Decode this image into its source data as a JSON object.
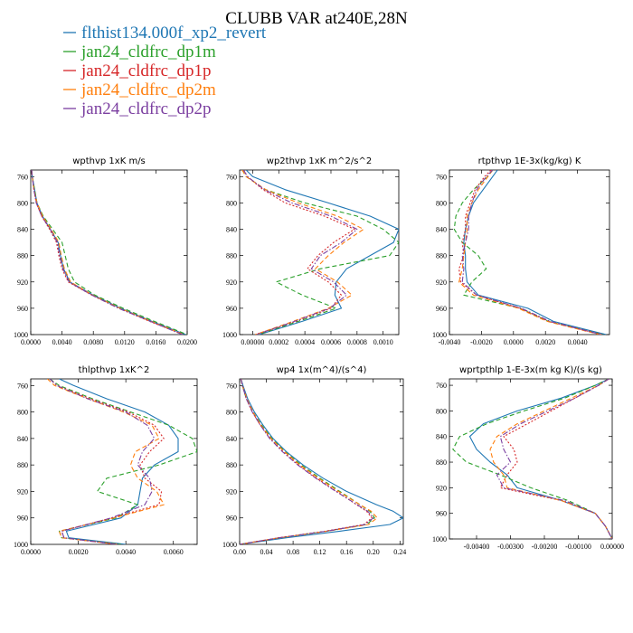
{
  "title": "CLUBB VAR at240E,28N",
  "series_styles": [
    {
      "name": "flthist134.000f_xp2_revert",
      "color": "#1f77b4",
      "dash": "solid"
    },
    {
      "name": "jan24_cldfrc_dp1m",
      "color": "#2ca02c",
      "dash": "dashed"
    },
    {
      "name": "jan24_cldfrc_dp1p",
      "color": "#d62728",
      "dash": "dotted"
    },
    {
      "name": "jan24_cldfrc_dp2m",
      "color": "#ff7f0e",
      "dash": "dashed"
    },
    {
      "name": "jan24_cldfrc_dp2p",
      "color": "#7b3fa0",
      "dash": "dashdot"
    }
  ],
  "chart_data": [
    {
      "type": "line",
      "title": "wpthvp  1xK m/s",
      "xlim": [
        0,
        0.02
      ],
      "ylim": [
        1000,
        750
      ],
      "xticks": [
        0,
        0.004,
        0.008,
        0.012,
        0.016,
        0.02
      ],
      "xtick_labels": [
        "0.0000",
        "0.0040",
        "0.0080",
        "0.0120",
        "0.0160",
        "0.0200"
      ],
      "yticks": [
        760,
        800,
        840,
        880,
        920,
        960,
        1000
      ],
      "y": [
        750,
        760,
        780,
        800,
        820,
        840,
        860,
        880,
        900,
        920,
        940,
        960,
        980,
        1000
      ],
      "series": [
        {
          "name": "flthist134.000f_xp2_revert",
          "values": [
            0.0001,
            0.0002,
            0.0005,
            0.0008,
            0.0015,
            0.0025,
            0.0035,
            0.0038,
            0.0042,
            0.005,
            0.008,
            0.0115,
            0.0155,
            0.0198
          ]
        },
        {
          "name": "jan24_cldfrc_dp1m",
          "values": [
            0.0001,
            0.0002,
            0.0005,
            0.0008,
            0.0016,
            0.0028,
            0.004,
            0.0044,
            0.0048,
            0.0056,
            0.0082,
            0.0118,
            0.0158,
            0.02
          ]
        },
        {
          "name": "jan24_cldfrc_dp1p",
          "values": [
            0.0001,
            0.0002,
            0.0004,
            0.0007,
            0.0014,
            0.0024,
            0.0033,
            0.0036,
            0.004,
            0.0048,
            0.0078,
            0.0113,
            0.0152,
            0.0195
          ]
        },
        {
          "name": "jan24_cldfrc_dp2m",
          "values": [
            0.0001,
            0.0002,
            0.0004,
            0.0008,
            0.0015,
            0.0026,
            0.0036,
            0.0039,
            0.0043,
            0.0051,
            0.0079,
            0.0114,
            0.0154,
            0.0196
          ]
        },
        {
          "name": "jan24_cldfrc_dp2p",
          "values": [
            0.0001,
            0.0002,
            0.0004,
            0.0007,
            0.0014,
            0.0025,
            0.0034,
            0.0037,
            0.0041,
            0.0049,
            0.0078,
            0.0112,
            0.0153,
            0.0194
          ]
        }
      ]
    },
    {
      "type": "line",
      "title": "wp2thvp  1xK m^2/s^2",
      "xlim": [
        -0.0001,
        0.00112
      ],
      "ylim": [
        1000,
        750
      ],
      "xticks": [
        0,
        0.0002,
        0.0004,
        0.0006,
        0.0008,
        0.001
      ],
      "xtick_labels": [
        "0.00000",
        "0.0002",
        "0.0004",
        "0.0006",
        "0.0008",
        "0.0010"
      ],
      "yticks": [
        760,
        800,
        840,
        880,
        920,
        960,
        1000
      ],
      "y": [
        750,
        760,
        780,
        800,
        820,
        840,
        860,
        880,
        900,
        920,
        940,
        960,
        980,
        1000
      ],
      "series": [
        {
          "name": "flthist134.000f_xp2_revert",
          "values": [
            -5e-05,
            0.0,
            0.00025,
            0.00058,
            0.0009,
            0.00112,
            0.00108,
            0.0009,
            0.00072,
            0.00064,
            0.00063,
            0.00068,
            0.00038,
            5e-05
          ]
        },
        {
          "name": "jan24_cldfrc_dp1m",
          "values": [
            -8e-05,
            -5e-05,
            0.0001,
            0.0004,
            0.0008,
            0.001,
            0.00112,
            0.00105,
            0.00052,
            0.00018,
            0.00038,
            0.00064,
            0.00035,
            4e-05
          ]
        },
        {
          "name": "jan24_cldfrc_dp1p",
          "values": [
            -7e-05,
            -4e-05,
            8e-05,
            0.00025,
            0.00055,
            0.00078,
            0.00062,
            0.0005,
            0.00042,
            0.00058,
            0.00068,
            0.0006,
            0.00033,
            2e-05
          ]
        },
        {
          "name": "jan24_cldfrc_dp2m",
          "values": [
            -8e-05,
            -5e-05,
            0.0001,
            0.00035,
            0.00065,
            0.00085,
            0.0007,
            0.00058,
            0.00048,
            0.00065,
            0.00076,
            0.00058,
            0.00031,
            2e-05
          ]
        },
        {
          "name": "jan24_cldfrc_dp2p",
          "values": [
            -7e-05,
            -4e-05,
            9e-05,
            0.0003,
            0.0006,
            0.0008,
            0.00068,
            0.00052,
            0.00045,
            0.00062,
            0.00072,
            0.00059,
            0.00032,
            3e-05
          ]
        }
      ]
    },
    {
      "type": "line",
      "title": "rtpthvp  1E-3x(kg/kg) K",
      "xlim": [
        -0.004,
        0.006
      ],
      "ylim": [
        1000,
        750
      ],
      "xticks": [
        -0.004,
        -0.002,
        0,
        0.002,
        0.004
      ],
      "xtick_labels": [
        "-0.0040",
        "-0.0020",
        "0.0000",
        "0.0020",
        "0.0040"
      ],
      "yticks": [
        760,
        800,
        840,
        880,
        920,
        960,
        1000
      ],
      "y": [
        750,
        760,
        780,
        800,
        820,
        840,
        860,
        880,
        900,
        920,
        940,
        960,
        980,
        1000
      ],
      "series": [
        {
          "name": "flthist134.000f_xp2_revert",
          "values": [
            -0.001,
            -0.0013,
            -0.0019,
            -0.0025,
            -0.0028,
            -0.003,
            -0.0031,
            -0.003,
            -0.003,
            -0.0029,
            -0.0022,
            0.0009,
            0.0025,
            0.0058
          ]
        },
        {
          "name": "jan24_cldfrc_dp1m",
          "values": [
            -0.0013,
            -0.0016,
            -0.0025,
            -0.0032,
            -0.0036,
            -0.0037,
            -0.0032,
            -0.0022,
            -0.0017,
            -0.0026,
            -0.0031,
            0.0004,
            0.0022,
            0.0056
          ]
        },
        {
          "name": "jan24_cldfrc_dp1p",
          "values": [
            -0.0014,
            -0.0018,
            -0.0024,
            -0.0027,
            -0.003,
            -0.003,
            -0.0032,
            -0.0031,
            -0.0034,
            -0.0033,
            -0.0023,
            0.0004,
            0.0022,
            0.0055
          ]
        },
        {
          "name": "jan24_cldfrc_dp2m",
          "values": [
            -0.0013,
            -0.0016,
            -0.0022,
            -0.0026,
            -0.0029,
            -0.0029,
            -0.003,
            -0.0031,
            -0.0032,
            -0.0034,
            -0.0025,
            0.0003,
            0.0021,
            0.0054
          ]
        },
        {
          "name": "jan24_cldfrc_dp2p",
          "values": [
            -0.0013,
            -0.0017,
            -0.0023,
            -0.0026,
            -0.0028,
            -0.0028,
            -0.003,
            -0.0032,
            -0.0031,
            -0.0032,
            -0.0023,
            0.0005,
            0.0023,
            0.0055
          ]
        }
      ]
    },
    {
      "type": "line",
      "title": "thlpthvp  1xK^2",
      "xlim": [
        0,
        0.007
      ],
      "ylim": [
        1000,
        750
      ],
      "xticks": [
        0,
        0.002,
        0.004,
        0.006
      ],
      "xtick_labels": [
        "0.0000",
        "0.0020",
        "0.0040",
        "0.0060"
      ],
      "yticks": [
        760,
        800,
        840,
        880,
        920,
        960,
        1000
      ],
      "y": [
        750,
        760,
        780,
        800,
        820,
        840,
        860,
        880,
        900,
        920,
        940,
        960,
        980,
        990,
        1000
      ],
      "series": [
        {
          "name": "flthist134.000f_xp2_revert",
          "values": [
            0.0012,
            0.0018,
            0.0032,
            0.0048,
            0.0058,
            0.0062,
            0.0062,
            0.0052,
            0.0047,
            0.0046,
            0.0045,
            0.0038,
            0.0015,
            0.0016,
            0.004
          ]
        },
        {
          "name": "jan24_cldfrc_dp1m",
          "values": [
            0.0008,
            0.0012,
            0.0026,
            0.0042,
            0.0058,
            0.0068,
            0.007,
            0.0054,
            0.0032,
            0.0028,
            0.0045,
            0.0036,
            0.0012,
            0.0013,
            0.0038
          ]
        },
        {
          "name": "jan24_cldfrc_dp1p",
          "values": [
            0.0008,
            0.0011,
            0.0025,
            0.0041,
            0.0052,
            0.0056,
            0.005,
            0.0046,
            0.0048,
            0.0055,
            0.0054,
            0.0034,
            0.0013,
            0.0014,
            0.0036
          ]
        },
        {
          "name": "jan24_cldfrc_dp2m",
          "values": [
            0.0007,
            0.001,
            0.0024,
            0.0039,
            0.0051,
            0.0054,
            0.0044,
            0.0042,
            0.0045,
            0.0053,
            0.0056,
            0.0035,
            0.0012,
            0.0013,
            0.0037
          ]
        },
        {
          "name": "jan24_cldfrc_dp2p",
          "values": [
            0.0008,
            0.0011,
            0.0024,
            0.004,
            0.0049,
            0.0052,
            0.0047,
            0.0045,
            0.005,
            0.0051,
            0.0048,
            0.0034,
            0.0013,
            0.0014,
            0.0036
          ]
        }
      ]
    },
    {
      "type": "line",
      "title": "wp4  1x(m^4)/(s^4)",
      "xlim": [
        0,
        0.245
      ],
      "ylim": [
        1000,
        750
      ],
      "xticks": [
        0,
        0.04,
        0.08,
        0.12,
        0.16,
        0.2,
        0.24
      ],
      "xtick_labels": [
        "0.00",
        "0.04",
        "0.08",
        "0.12",
        "0.16",
        "0.20",
        "0.24"
      ],
      "yticks": [
        760,
        800,
        840,
        880,
        920,
        960,
        1000
      ],
      "y": [
        750,
        760,
        780,
        800,
        820,
        840,
        860,
        880,
        900,
        920,
        940,
        950,
        960,
        970,
        980,
        990,
        1000
      ],
      "series": [
        {
          "name": "flthist134.000f_xp2_revert",
          "values": [
            0.002,
            0.005,
            0.012,
            0.022,
            0.035,
            0.05,
            0.07,
            0.095,
            0.125,
            0.16,
            0.205,
            0.23,
            0.245,
            0.225,
            0.15,
            0.07,
            0.0
          ]
        },
        {
          "name": "jan24_cldfrc_dp1m",
          "values": [
            0.002,
            0.004,
            0.01,
            0.02,
            0.033,
            0.048,
            0.068,
            0.092,
            0.12,
            0.15,
            0.18,
            0.195,
            0.202,
            0.19,
            0.13,
            0.06,
            0.0
          ]
        },
        {
          "name": "jan24_cldfrc_dp1p",
          "values": [
            0.002,
            0.004,
            0.01,
            0.019,
            0.031,
            0.046,
            0.065,
            0.088,
            0.115,
            0.145,
            0.175,
            0.19,
            0.198,
            0.186,
            0.128,
            0.058,
            0.0
          ]
        },
        {
          "name": "jan24_cldfrc_dp2m",
          "values": [
            0.002,
            0.004,
            0.011,
            0.02,
            0.032,
            0.047,
            0.067,
            0.09,
            0.118,
            0.148,
            0.18,
            0.197,
            0.206,
            0.193,
            0.132,
            0.06,
            0.0
          ]
        },
        {
          "name": "jan24_cldfrc_dp2p",
          "values": [
            0.002,
            0.004,
            0.01,
            0.019,
            0.031,
            0.045,
            0.064,
            0.087,
            0.114,
            0.144,
            0.176,
            0.192,
            0.2,
            0.188,
            0.13,
            0.059,
            0.0
          ]
        }
      ]
    },
    {
      "type": "line",
      "title": "wprtpthlp  1-E-3x(m kg K)/(s kg)",
      "xlim": [
        -0.0048,
        0.0
      ],
      "ylim": [
        1000,
        750
      ],
      "xticks": [
        -0.004,
        -0.003,
        -0.002,
        -0.001,
        0.0
      ],
      "xtick_labels": [
        "-0.00400",
        "-0.00300",
        "-0.00200",
        "-0.00100",
        "0.00000"
      ],
      "yticks": [
        760,
        800,
        840,
        880,
        920,
        960,
        1000
      ],
      "y": [
        750,
        760,
        780,
        800,
        820,
        840,
        860,
        880,
        900,
        920,
        940,
        960,
        980,
        1000
      ],
      "series": [
        {
          "name": "flthist134.000f_xp2_revert",
          "values": [
            -0.0001,
            -0.0005,
            -0.0015,
            -0.0028,
            -0.0038,
            -0.0042,
            -0.004,
            -0.0036,
            -0.0031,
            -0.0028,
            -0.0015,
            -0.0005,
            -0.0002,
            0.0
          ]
        },
        {
          "name": "jan24_cldfrc_dp1m",
          "values": [
            -0.0001,
            -0.0005,
            -0.0014,
            -0.0026,
            -0.0037,
            -0.0045,
            -0.0047,
            -0.0043,
            -0.0033,
            -0.0024,
            -0.0013,
            -0.0005,
            -0.0002,
            0.0
          ]
        },
        {
          "name": "jan24_cldfrc_dp1p",
          "values": [
            -0.0001,
            -0.0004,
            -0.0011,
            -0.0018,
            -0.0025,
            -0.0032,
            -0.0029,
            -0.0028,
            -0.0031,
            -0.0033,
            -0.0015,
            -0.0005,
            -0.0002,
            0.0
          ]
        },
        {
          "name": "jan24_cldfrc_dp2m",
          "values": [
            -0.0001,
            -0.0004,
            -0.0012,
            -0.002,
            -0.0028,
            -0.0034,
            -0.0036,
            -0.0035,
            -0.0032,
            -0.0031,
            -0.0015,
            -0.0005,
            -0.0002,
            0.0
          ]
        },
        {
          "name": "jan24_cldfrc_dp2p",
          "values": [
            -0.0001,
            -0.0004,
            -0.0011,
            -0.0019,
            -0.0027,
            -0.0033,
            -0.0032,
            -0.003,
            -0.0034,
            -0.0032,
            -0.0014,
            -0.0005,
            -0.0002,
            0.0
          ]
        }
      ]
    }
  ]
}
